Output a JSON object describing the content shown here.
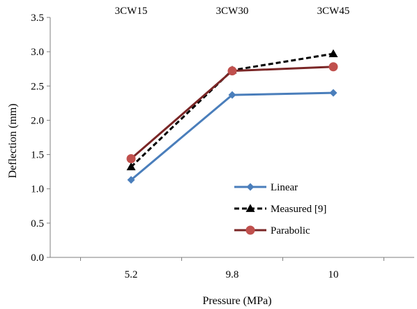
{
  "chart_data": {
    "type": "line",
    "categories": [
      "5.2",
      "9.8",
      "10"
    ],
    "top_categories": [
      "3CW15",
      "3CW30",
      "3CW45"
    ],
    "xlabel": "Pressure (MPa)",
    "ylabel": "Deflection (mm)",
    "ylim": [
      0,
      3.5
    ],
    "yticks": [
      "0.0",
      "0.5",
      "1.0",
      "1.5",
      "2.0",
      "2.5",
      "3.0",
      "3.5"
    ],
    "grid": false,
    "legend_position": "bottom-right",
    "series": [
      {
        "name": "Linear",
        "values": [
          1.13,
          2.37,
          2.4
        ],
        "color": "#4a7ebb",
        "marker": "diamond",
        "dash": "solid"
      },
      {
        "name": "Measured [9]",
        "values": [
          1.32,
          2.73,
          2.97
        ],
        "color": "#000000",
        "marker": "triangle",
        "dash": "dashed"
      },
      {
        "name": "Parabolic",
        "values": [
          1.44,
          2.72,
          2.78
        ],
        "color": "#7a2626",
        "marker": "circle",
        "dash": "solid"
      }
    ]
  }
}
